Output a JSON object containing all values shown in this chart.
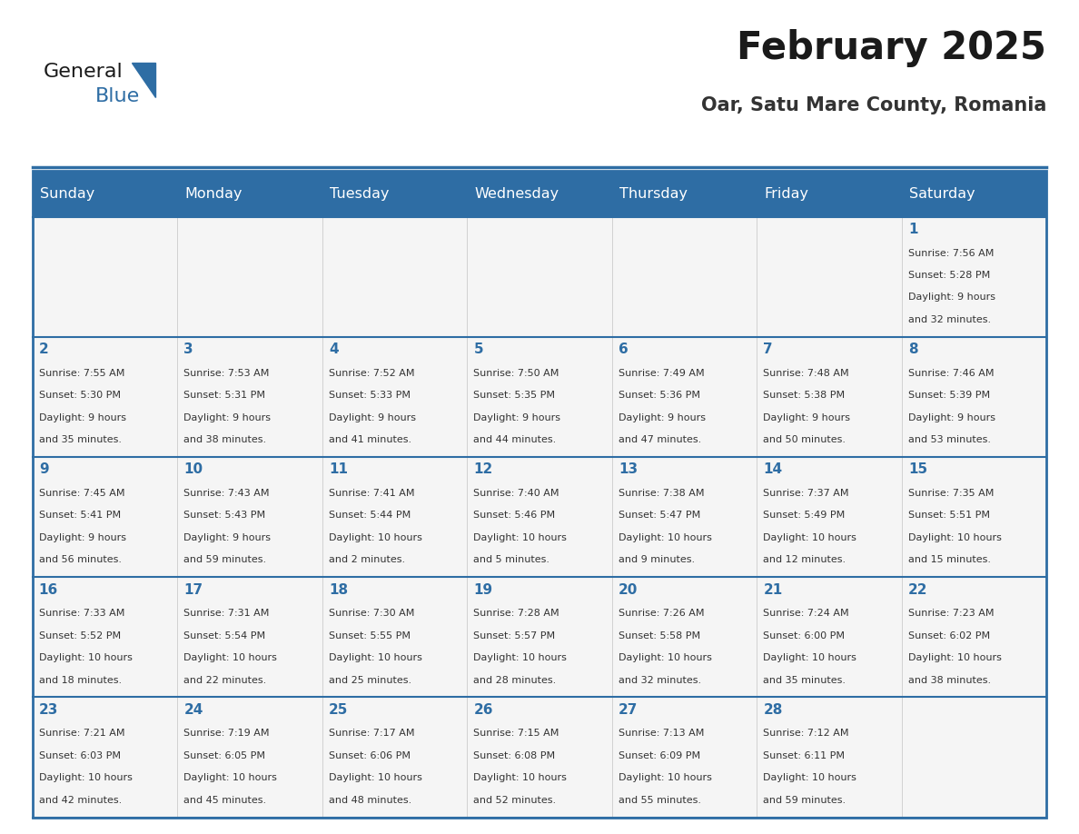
{
  "title": "February 2025",
  "subtitle": "Oar, Satu Mare County, Romania",
  "header_bg": "#2e6da4",
  "header_text": "#ffffff",
  "cell_bg": "#f5f5f5",
  "border_color": "#2e6da4",
  "text_color": "#333333",
  "day_number_color": "#2e6da4",
  "days_of_week": [
    "Sunday",
    "Monday",
    "Tuesday",
    "Wednesday",
    "Thursday",
    "Friday",
    "Saturday"
  ],
  "calendar": [
    [
      {
        "day": "",
        "info": ""
      },
      {
        "day": "",
        "info": ""
      },
      {
        "day": "",
        "info": ""
      },
      {
        "day": "",
        "info": ""
      },
      {
        "day": "",
        "info": ""
      },
      {
        "day": "",
        "info": ""
      },
      {
        "day": "1",
        "info": "Sunrise: 7:56 AM\nSunset: 5:28 PM\nDaylight: 9 hours\nand 32 minutes."
      }
    ],
    [
      {
        "day": "2",
        "info": "Sunrise: 7:55 AM\nSunset: 5:30 PM\nDaylight: 9 hours\nand 35 minutes."
      },
      {
        "day": "3",
        "info": "Sunrise: 7:53 AM\nSunset: 5:31 PM\nDaylight: 9 hours\nand 38 minutes."
      },
      {
        "day": "4",
        "info": "Sunrise: 7:52 AM\nSunset: 5:33 PM\nDaylight: 9 hours\nand 41 minutes."
      },
      {
        "day": "5",
        "info": "Sunrise: 7:50 AM\nSunset: 5:35 PM\nDaylight: 9 hours\nand 44 minutes."
      },
      {
        "day": "6",
        "info": "Sunrise: 7:49 AM\nSunset: 5:36 PM\nDaylight: 9 hours\nand 47 minutes."
      },
      {
        "day": "7",
        "info": "Sunrise: 7:48 AM\nSunset: 5:38 PM\nDaylight: 9 hours\nand 50 minutes."
      },
      {
        "day": "8",
        "info": "Sunrise: 7:46 AM\nSunset: 5:39 PM\nDaylight: 9 hours\nand 53 minutes."
      }
    ],
    [
      {
        "day": "9",
        "info": "Sunrise: 7:45 AM\nSunset: 5:41 PM\nDaylight: 9 hours\nand 56 minutes."
      },
      {
        "day": "10",
        "info": "Sunrise: 7:43 AM\nSunset: 5:43 PM\nDaylight: 9 hours\nand 59 minutes."
      },
      {
        "day": "11",
        "info": "Sunrise: 7:41 AM\nSunset: 5:44 PM\nDaylight: 10 hours\nand 2 minutes."
      },
      {
        "day": "12",
        "info": "Sunrise: 7:40 AM\nSunset: 5:46 PM\nDaylight: 10 hours\nand 5 minutes."
      },
      {
        "day": "13",
        "info": "Sunrise: 7:38 AM\nSunset: 5:47 PM\nDaylight: 10 hours\nand 9 minutes."
      },
      {
        "day": "14",
        "info": "Sunrise: 7:37 AM\nSunset: 5:49 PM\nDaylight: 10 hours\nand 12 minutes."
      },
      {
        "day": "15",
        "info": "Sunrise: 7:35 AM\nSunset: 5:51 PM\nDaylight: 10 hours\nand 15 minutes."
      }
    ],
    [
      {
        "day": "16",
        "info": "Sunrise: 7:33 AM\nSunset: 5:52 PM\nDaylight: 10 hours\nand 18 minutes."
      },
      {
        "day": "17",
        "info": "Sunrise: 7:31 AM\nSunset: 5:54 PM\nDaylight: 10 hours\nand 22 minutes."
      },
      {
        "day": "18",
        "info": "Sunrise: 7:30 AM\nSunset: 5:55 PM\nDaylight: 10 hours\nand 25 minutes."
      },
      {
        "day": "19",
        "info": "Sunrise: 7:28 AM\nSunset: 5:57 PM\nDaylight: 10 hours\nand 28 minutes."
      },
      {
        "day": "20",
        "info": "Sunrise: 7:26 AM\nSunset: 5:58 PM\nDaylight: 10 hours\nand 32 minutes."
      },
      {
        "day": "21",
        "info": "Sunrise: 7:24 AM\nSunset: 6:00 PM\nDaylight: 10 hours\nand 35 minutes."
      },
      {
        "day": "22",
        "info": "Sunrise: 7:23 AM\nSunset: 6:02 PM\nDaylight: 10 hours\nand 38 minutes."
      }
    ],
    [
      {
        "day": "23",
        "info": "Sunrise: 7:21 AM\nSunset: 6:03 PM\nDaylight: 10 hours\nand 42 minutes."
      },
      {
        "day": "24",
        "info": "Sunrise: 7:19 AM\nSunset: 6:05 PM\nDaylight: 10 hours\nand 45 minutes."
      },
      {
        "day": "25",
        "info": "Sunrise: 7:17 AM\nSunset: 6:06 PM\nDaylight: 10 hours\nand 48 minutes."
      },
      {
        "day": "26",
        "info": "Sunrise: 7:15 AM\nSunset: 6:08 PM\nDaylight: 10 hours\nand 52 minutes."
      },
      {
        "day": "27",
        "info": "Sunrise: 7:13 AM\nSunset: 6:09 PM\nDaylight: 10 hours\nand 55 minutes."
      },
      {
        "day": "28",
        "info": "Sunrise: 7:12 AM\nSunset: 6:11 PM\nDaylight: 10 hours\nand 59 minutes."
      },
      {
        "day": "",
        "info": ""
      }
    ]
  ],
  "logo_text_general": "General",
  "logo_text_blue": "Blue",
  "logo_triangle_color": "#2e6da4",
  "logo_general_color": "#1a1a1a",
  "logo_blue_color": "#2e6da4"
}
